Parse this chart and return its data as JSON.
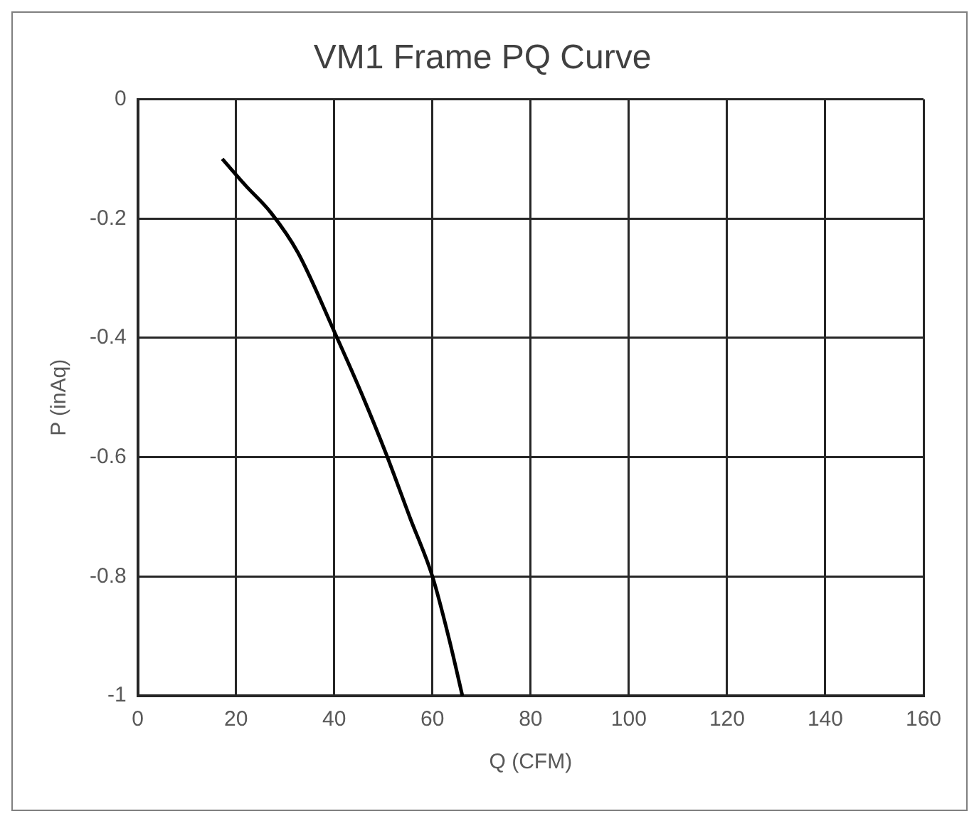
{
  "chart_data": {
    "type": "line",
    "title": "VM1 Frame PQ Curve",
    "xlabel": "Q (CFM)",
    "ylabel": "P (inAq)",
    "series": [
      {
        "color": "#000000",
        "x": [
          17.2,
          22,
          27.1,
          32.6,
          40.1,
          45.5,
          50.5,
          55.5,
          60,
          63.4,
          66.1
        ],
        "values": [
          -0.1,
          -0.145,
          -0.19,
          -0.257,
          -0.391,
          -0.492,
          -0.593,
          -0.703,
          -0.8,
          -0.905,
          -1
        ]
      }
    ],
    "xlim": [
      0,
      160
    ],
    "xticks": [
      0,
      20,
      40,
      60,
      80,
      100,
      120,
      140,
      160
    ],
    "ylim": [
      -1,
      0
    ],
    "yticks": [
      -1,
      -0.8,
      -0.6,
      -0.4,
      -0.2,
      0
    ],
    "grid": true,
    "legend": false,
    "marker": "none",
    "line_style": "solid"
  }
}
